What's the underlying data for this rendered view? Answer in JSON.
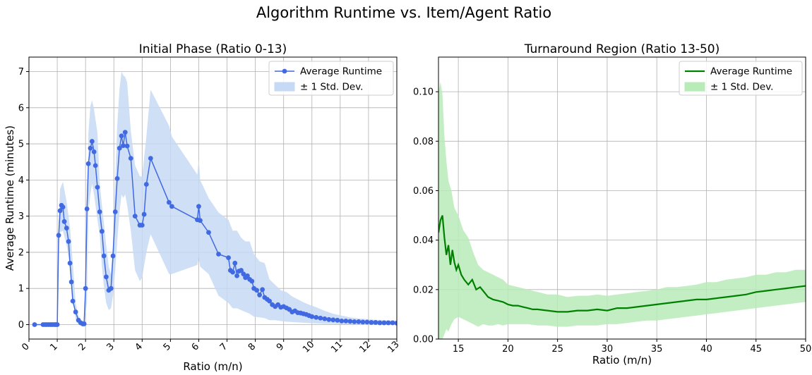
{
  "suptitle": "Algorithm Runtime vs. Item/Agent Ratio",
  "chart_data": [
    {
      "type": "line",
      "title": "Initial Phase (Ratio 0-13)",
      "xlabel": "Ratio (m/n)",
      "ylabel": "Average Runtime (minutes)",
      "xlim": [
        0,
        13
      ],
      "ylim": [
        -0.4,
        7.4
      ],
      "xticks": [
        0,
        1,
        2,
        3,
        4,
        5,
        6,
        7,
        8,
        9,
        10,
        11,
        12,
        13
      ],
      "xtick_labels": [
        "0",
        "1",
        "2",
        "3",
        "4",
        "5",
        "6",
        "7",
        "8",
        "9",
        "10",
        "11",
        "12",
        "13"
      ],
      "yticks": [
        0,
        1,
        2,
        3,
        4,
        5,
        6,
        7
      ],
      "ytick_labels": [
        "0",
        "1",
        "2",
        "3",
        "4",
        "5",
        "6",
        "7"
      ],
      "grid": true,
      "legend_position": "top-right",
      "series": [
        {
          "name": "Average Runtime",
          "style": "line-with-markers",
          "color": "#4169e1",
          "x": [
            0.2,
            0.5,
            0.57,
            0.63,
            0.7,
            0.77,
            0.83,
            0.9,
            0.95,
            1.0,
            1.05,
            1.1,
            1.15,
            1.2,
            1.25,
            1.33,
            1.4,
            1.45,
            1.5,
            1.55,
            1.65,
            1.75,
            1.83,
            1.9,
            1.95,
            2.0,
            2.05,
            2.1,
            2.17,
            2.23,
            2.3,
            2.35,
            2.42,
            2.5,
            2.58,
            2.65,
            2.73,
            2.82,
            2.9,
            2.97,
            3.05,
            3.12,
            3.2,
            3.27,
            3.33,
            3.4,
            3.47,
            3.6,
            3.75,
            3.92,
            4.0,
            4.07,
            4.15,
            4.3,
            4.95,
            5.05,
            5.95,
            6.0,
            6.05,
            6.35,
            6.7,
            7.05,
            7.12,
            7.2,
            7.28,
            7.35,
            7.42,
            7.5,
            7.58,
            7.65,
            7.72,
            7.8,
            7.88,
            7.95,
            8.05,
            8.15,
            8.25,
            8.33,
            8.42,
            8.5,
            8.6,
            8.7,
            8.8,
            8.9,
            9.0,
            9.1,
            9.2,
            9.3,
            9.4,
            9.5,
            9.6,
            9.7,
            9.8,
            9.9,
            10.0,
            10.15,
            10.3,
            10.45,
            10.6,
            10.75,
            10.9,
            11.05,
            11.2,
            11.35,
            11.5,
            11.65,
            11.8,
            11.95,
            12.1,
            12.25,
            12.4,
            12.55,
            12.7,
            12.85,
            13.0
          ],
          "y": [
            0.0,
            0.0,
            0.0,
            0.0,
            0.0,
            0.0,
            0.0,
            0.0,
            0.0,
            0.0,
            2.47,
            3.15,
            3.3,
            3.25,
            2.85,
            2.67,
            2.3,
            1.7,
            1.18,
            0.65,
            0.35,
            0.12,
            0.05,
            0.02,
            0.02,
            1.0,
            3.2,
            4.45,
            4.88,
            5.07,
            4.78,
            4.4,
            3.8,
            3.12,
            2.58,
            1.9,
            1.32,
            0.95,
            1.0,
            1.9,
            3.12,
            4.04,
            4.88,
            5.22,
            4.95,
            5.32,
            4.94,
            4.6,
            3.0,
            2.75,
            2.75,
            3.05,
            3.88,
            4.6,
            3.38,
            3.27,
            2.9,
            3.27,
            2.88,
            2.55,
            1.95,
            1.85,
            1.5,
            1.45,
            1.7,
            1.35,
            1.48,
            1.5,
            1.4,
            1.3,
            1.35,
            1.25,
            1.2,
            1.0,
            0.95,
            0.82,
            0.97,
            0.75,
            0.7,
            0.65,
            0.55,
            0.5,
            0.55,
            0.48,
            0.5,
            0.46,
            0.42,
            0.35,
            0.38,
            0.33,
            0.32,
            0.3,
            0.28,
            0.25,
            0.22,
            0.2,
            0.18,
            0.16,
            0.14,
            0.13,
            0.12,
            0.1,
            0.1,
            0.09,
            0.08,
            0.08,
            0.07,
            0.07,
            0.06,
            0.06,
            0.05,
            0.05,
            0.05,
            0.05,
            0.04
          ]
        },
        {
          "name": "± 1 Std. Dev.",
          "style": "band",
          "color": "#c6d9f5",
          "x": [
            0.2,
            1.0,
            1.05,
            1.1,
            1.2,
            1.33,
            1.45,
            1.55,
            1.65,
            1.75,
            1.85,
            1.95,
            2.05,
            2.1,
            2.17,
            2.23,
            2.3,
            2.42,
            2.5,
            2.58,
            2.65,
            2.73,
            2.82,
            2.9,
            2.97,
            3.05,
            3.12,
            3.2,
            3.27,
            3.33,
            3.4,
            3.47,
            3.6,
            3.75,
            3.92,
            4.0,
            4.15,
            4.3,
            4.95,
            5.05,
            5.95,
            6.0,
            6.05,
            6.35,
            6.7,
            7.05,
            7.2,
            7.35,
            7.5,
            7.65,
            7.8,
            7.95,
            8.15,
            8.33,
            8.5,
            8.7,
            8.9,
            9.1,
            9.3,
            9.5,
            9.7,
            9.9,
            10.15,
            10.45,
            10.75,
            11.05,
            11.35,
            11.65,
            11.95,
            12.25,
            12.55,
            12.85,
            13.0
          ],
          "upper": [
            0.0,
            0.0,
            2.8,
            3.75,
            3.95,
            3.4,
            2.7,
            1.7,
            0.6,
            0.25,
            0.1,
            0.05,
            1.4,
            5.3,
            6.05,
            6.2,
            5.95,
            5.3,
            3.9,
            3.3,
            2.8,
            2.2,
            1.6,
            1.4,
            2.2,
            4.0,
            5.5,
            6.5,
            7.0,
            6.9,
            6.85,
            6.7,
            5.35,
            4.4,
            4.1,
            4.1,
            5.2,
            6.5,
            5.5,
            5.2,
            4.15,
            4.6,
            4.0,
            3.5,
            3.1,
            2.9,
            2.6,
            2.6,
            2.4,
            2.3,
            2.3,
            1.95,
            1.75,
            1.7,
            1.25,
            1.1,
            0.95,
            0.9,
            0.78,
            0.7,
            0.62,
            0.55,
            0.48,
            0.38,
            0.3,
            0.25,
            0.2,
            0.17,
            0.15,
            0.13,
            0.12,
            0.11,
            0.11
          ],
          "lower": [
            0.0,
            0.0,
            2.1,
            2.55,
            2.6,
            2.2,
            1.6,
            0.7,
            0.15,
            0.0,
            0.0,
            0.0,
            0.6,
            3.1,
            3.6,
            3.9,
            3.6,
            2.9,
            2.5,
            1.6,
            1.05,
            0.6,
            0.4,
            0.45,
            0.8,
            1.5,
            2.3,
            3.1,
            3.6,
            3.5,
            3.6,
            3.3,
            2.6,
            1.5,
            1.2,
            1.3,
            2.0,
            2.5,
            1.4,
            1.4,
            1.65,
            1.85,
            1.6,
            1.4,
            0.8,
            0.6,
            0.45,
            0.45,
            0.4,
            0.35,
            0.3,
            0.22,
            0.2,
            0.18,
            0.12,
            0.12,
            0.1,
            0.08,
            0.07,
            0.06,
            0.05,
            0.04,
            0.03,
            0.02,
            0.02,
            0.01,
            0.01,
            0.0,
            0.0,
            0.0,
            0.0,
            0.0,
            0.0
          ]
        }
      ]
    },
    {
      "type": "line",
      "title": "Turnaround Region (Ratio 13-50)",
      "xlabel": "Ratio (m/n)",
      "ylabel": "",
      "xlim": [
        13,
        50
      ],
      "ylim": [
        0.0,
        0.114
      ],
      "xticks": [
        15,
        20,
        25,
        30,
        35,
        40,
        45,
        50
      ],
      "xtick_labels": [
        "15",
        "20",
        "25",
        "30",
        "35",
        "40",
        "45",
        "50"
      ],
      "yticks": [
        0.0,
        0.02,
        0.04,
        0.06,
        0.08,
        0.1
      ],
      "ytick_labels": [
        "0.00",
        "0.02",
        "0.04",
        "0.06",
        "0.08",
        "0.10"
      ],
      "grid": true,
      "legend_position": "top-right",
      "series": [
        {
          "name": "Average Runtime",
          "style": "line",
          "color": "#008000",
          "x": [
            13.0,
            13.2,
            13.4,
            13.6,
            13.8,
            14.0,
            14.2,
            14.4,
            14.6,
            14.8,
            15.0,
            15.3,
            15.6,
            16.0,
            16.4,
            16.8,
            17.2,
            17.6,
            18.0,
            18.5,
            19.0,
            19.5,
            20.0,
            20.5,
            21.0,
            21.5,
            22.0,
            22.5,
            23.0,
            24.0,
            25.0,
            26.0,
            27.0,
            28.0,
            29.0,
            30.0,
            31.0,
            32.0,
            33.0,
            34.0,
            35.0,
            36.0,
            37.0,
            38.0,
            39.0,
            40.0,
            41.0,
            42.0,
            43.0,
            44.0,
            45.0,
            46.0,
            47.0,
            48.0,
            49.0,
            50.0
          ],
          "y": [
            0.043,
            0.048,
            0.05,
            0.041,
            0.034,
            0.038,
            0.03,
            0.036,
            0.031,
            0.028,
            0.03,
            0.026,
            0.024,
            0.022,
            0.024,
            0.02,
            0.021,
            0.019,
            0.017,
            0.016,
            0.0155,
            0.015,
            0.014,
            0.0135,
            0.0135,
            0.013,
            0.0125,
            0.012,
            0.012,
            0.0115,
            0.011,
            0.011,
            0.0115,
            0.0115,
            0.012,
            0.0115,
            0.0125,
            0.0125,
            0.013,
            0.0135,
            0.014,
            0.0145,
            0.015,
            0.0155,
            0.016,
            0.016,
            0.0165,
            0.017,
            0.0175,
            0.018,
            0.019,
            0.0195,
            0.02,
            0.0205,
            0.021,
            0.0215
          ]
        },
        {
          "name": "± 1 Std. Dev.",
          "style": "band",
          "color": "#b8ebb8",
          "x": [
            13.0,
            13.2,
            13.4,
            13.6,
            13.8,
            14.0,
            14.3,
            14.6,
            15.0,
            15.5,
            16.0,
            16.5,
            17.0,
            17.5,
            18.0,
            18.5,
            19.0,
            19.5,
            20.0,
            21.0,
            22.0,
            23.0,
            24.0,
            25.0,
            26.0,
            27.0,
            28.0,
            29.0,
            30.0,
            31.0,
            32.0,
            33.0,
            34.0,
            35.0,
            36.0,
            37.0,
            38.0,
            39.0,
            40.0,
            41.0,
            42.0,
            43.0,
            44.0,
            45.0,
            46.0,
            47.0,
            48.0,
            49.0,
            50.0
          ],
          "upper": [
            0.1,
            0.104,
            0.099,
            0.082,
            0.072,
            0.064,
            0.06,
            0.053,
            0.05,
            0.044,
            0.041,
            0.035,
            0.03,
            0.028,
            0.027,
            0.026,
            0.025,
            0.024,
            0.022,
            0.021,
            0.02,
            0.019,
            0.018,
            0.018,
            0.017,
            0.0175,
            0.0175,
            0.018,
            0.0175,
            0.018,
            0.0185,
            0.019,
            0.0195,
            0.02,
            0.021,
            0.021,
            0.0215,
            0.022,
            0.023,
            0.023,
            0.024,
            0.0245,
            0.025,
            0.026,
            0.026,
            0.027,
            0.027,
            0.028,
            0.028
          ],
          "lower": [
            0.0,
            0.0,
            0.0,
            0.002,
            0.004,
            0.003,
            0.006,
            0.008,
            0.009,
            0.008,
            0.007,
            0.006,
            0.005,
            0.006,
            0.0055,
            0.0055,
            0.006,
            0.0055,
            0.006,
            0.006,
            0.006,
            0.0055,
            0.0055,
            0.005,
            0.005,
            0.0055,
            0.0055,
            0.0055,
            0.006,
            0.006,
            0.0065,
            0.007,
            0.0075,
            0.0075,
            0.008,
            0.0085,
            0.009,
            0.0095,
            0.01,
            0.0105,
            0.011,
            0.0115,
            0.012,
            0.0125,
            0.013,
            0.0135,
            0.014,
            0.0145,
            0.015
          ]
        }
      ]
    }
  ]
}
